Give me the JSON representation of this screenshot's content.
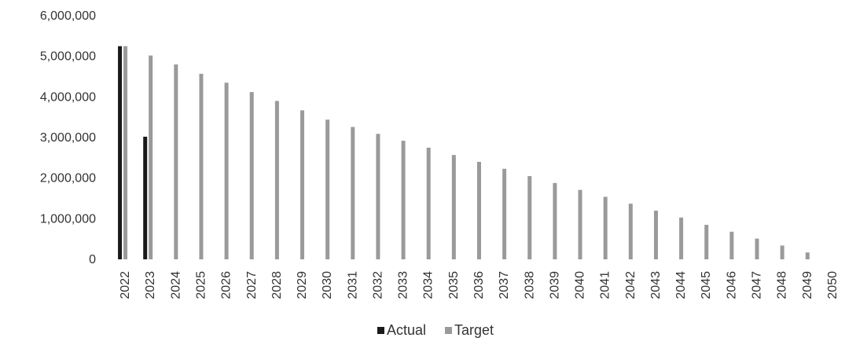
{
  "chart_data": {
    "type": "bar",
    "title": "",
    "xlabel": "",
    "ylabel": "",
    "categories": [
      "2022",
      "2023",
      "2024",
      "2025",
      "2026",
      "2027",
      "2028",
      "2029",
      "2030",
      "2031",
      "2032",
      "2033",
      "2034",
      "2035",
      "2036",
      "2037",
      "2038",
      "2039",
      "2040",
      "2041",
      "2042",
      "2043",
      "2044",
      "2045",
      "2046",
      "2047",
      "2048",
      "2049",
      "2050"
    ],
    "y_ticks": [
      "0",
      "1,000,000",
      "2,000,000",
      "3,000,000",
      "4,000,000",
      "5,000,000",
      "6,000,000"
    ],
    "ylim": [
      0,
      6000000
    ],
    "grid": false,
    "legend_position": "bottom",
    "series": [
      {
        "name": "Actual",
        "color": "#1a1a1a",
        "values": [
          5250000,
          3020000,
          null,
          null,
          null,
          null,
          null,
          null,
          null,
          null,
          null,
          null,
          null,
          null,
          null,
          null,
          null,
          null,
          null,
          null,
          null,
          null,
          null,
          null,
          null,
          null,
          null,
          null,
          null
        ]
      },
      {
        "name": "Target",
        "color": "#9a9a9a",
        "values": [
          5250000,
          5020000,
          4800000,
          4570000,
          4350000,
          4120000,
          3900000,
          3670000,
          3440000,
          3260000,
          3090000,
          2920000,
          2750000,
          2570000,
          2400000,
          2230000,
          2050000,
          1880000,
          1710000,
          1540000,
          1370000,
          1200000,
          1030000,
          850000,
          680000,
          510000,
          340000,
          170000,
          0
        ]
      }
    ]
  }
}
